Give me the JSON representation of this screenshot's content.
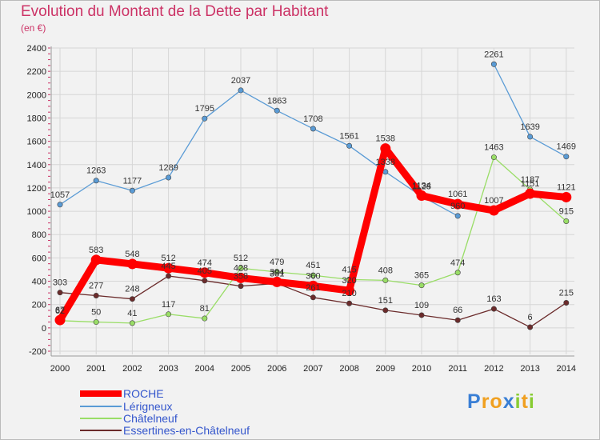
{
  "chart_data": {
    "type": "line",
    "title": "Evolution du Montant de la Dette par Habitant",
    "unit_label": "(en €)",
    "xlabel": "",
    "ylabel": "",
    "x": [
      "2000",
      "2001",
      "2002",
      "2003",
      "2004",
      "2005",
      "2006",
      "2007",
      "2008",
      "2009",
      "2010",
      "2011",
      "2012",
      "2013",
      "2014"
    ],
    "y_ticks": [
      "-200",
      "0",
      "200",
      "400",
      "600",
      "800",
      "1000",
      "1200",
      "1400",
      "1600",
      "1800",
      "2000",
      "2200",
      "2400"
    ],
    "ylim": [
      -200,
      2400
    ],
    "grid": true,
    "legend_position": "bottom-left",
    "series": [
      {
        "name": "ROCHE",
        "color": "#ff0000",
        "emphasis": true,
        "values": [
          67,
          583,
          548,
          512,
          474,
          428,
          394,
          360,
          320,
          1538,
          1134,
          1061,
          1007,
          1151,
          1121
        ],
        "labels": [
          "67",
          "583",
          "548",
          "512",
          "474",
          "428",
          "394",
          "360",
          "320",
          "1538",
          "1134",
          "1061",
          "1007",
          "1151",
          "1121"
        ]
      },
      {
        "name": "Lérigneux",
        "color": "#5a9bd5",
        "values": [
          1057,
          1263,
          1177,
          1289,
          1795,
          2037,
          1863,
          1708,
          1561,
          1338,
          1128,
          960,
          2261,
          1639,
          1469
        ],
        "labels": [
          "1057",
          "1263",
          "1177",
          "1289",
          "1795",
          "2037",
          "1863",
          "1708",
          "1561",
          "1338",
          "1128",
          "960",
          "2261",
          "1639",
          "1469"
        ]
      },
      {
        "name": "Châtelneuf",
        "color": "#99dd66",
        "values": [
          62,
          50,
          41,
          117,
          81,
          512,
          479,
          451,
          415,
          408,
          365,
          474,
          1463,
          1187,
          915
        ],
        "labels": [
          "62",
          "50",
          "41",
          "117",
          "81",
          "512",
          "479",
          "451",
          "415",
          "408",
          "365",
          "474",
          "1463",
          "1187",
          "915"
        ]
      },
      {
        "name": "Essertines-en-Châtelneuf",
        "color": "#6b2b2b",
        "values": [
          303,
          277,
          248,
          445,
          405,
          358,
          381,
          261,
          210,
          151,
          109,
          66,
          163,
          6,
          215
        ],
        "labels": [
          "303",
          "277",
          "248",
          "445",
          "405",
          "358",
          "381",
          "261",
          "210",
          "151",
          "109",
          "66",
          "163",
          "6",
          "215"
        ]
      }
    ]
  },
  "logo": {
    "letters": [
      "P",
      "r",
      "o",
      "x",
      "i",
      "t",
      "i"
    ],
    "colors": [
      "#3a7fd5",
      "#f0a020",
      "#f0a020",
      "#3a7fd5",
      "#88cc33",
      "#f0a020",
      "#88cc33"
    ]
  }
}
